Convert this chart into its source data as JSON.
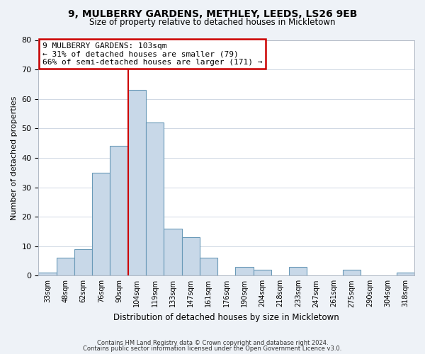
{
  "title": "9, MULBERRY GARDENS, METHLEY, LEEDS, LS26 9EB",
  "subtitle": "Size of property relative to detached houses in Mickletown",
  "xlabel": "Distribution of detached houses by size in Mickletown",
  "ylabel": "Number of detached properties",
  "bar_color": "#c8d8e8",
  "bar_edge_color": "#6a9ab8",
  "bin_labels": [
    "33sqm",
    "48sqm",
    "62sqm",
    "76sqm",
    "90sqm",
    "104sqm",
    "119sqm",
    "133sqm",
    "147sqm",
    "161sqm",
    "176sqm",
    "190sqm",
    "204sqm",
    "218sqm",
    "233sqm",
    "247sqm",
    "261sqm",
    "275sqm",
    "290sqm",
    "304sqm",
    "318sqm"
  ],
  "bar_heights": [
    1,
    6,
    9,
    35,
    44,
    63,
    52,
    16,
    13,
    6,
    0,
    3,
    2,
    0,
    3,
    0,
    0,
    2,
    0,
    0,
    1
  ],
  "ylim": [
    0,
    80
  ],
  "yticks": [
    0,
    10,
    20,
    30,
    40,
    50,
    60,
    70,
    80
  ],
  "vline_x": 5,
  "vline_color": "#cc0000",
  "annotation_title": "9 MULBERRY GARDENS: 103sqm",
  "annotation_line1": "← 31% of detached houses are smaller (79)",
  "annotation_line2": "66% of semi-detached houses are larger (171) →",
  "annotation_box_color": "#ffffff",
  "annotation_box_edge": "#cc0000",
  "footer1": "Contains HM Land Registry data © Crown copyright and database right 2024.",
  "footer2": "Contains public sector information licensed under the Open Government Licence v3.0.",
  "background_color": "#eef2f7",
  "plot_background": "#ffffff",
  "grid_color": "#d0d8e4"
}
